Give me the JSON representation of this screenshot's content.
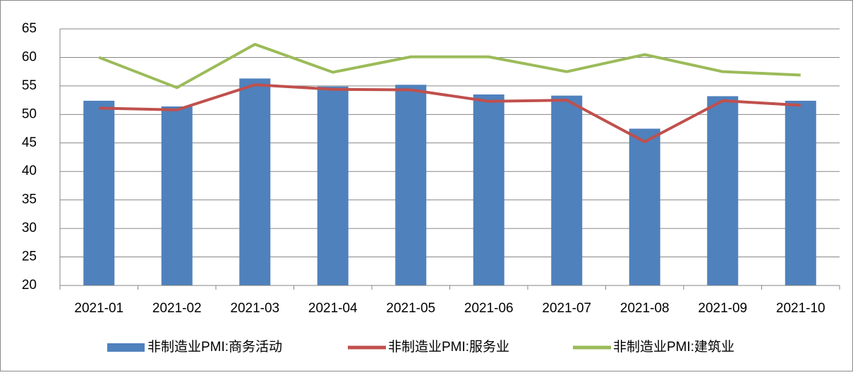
{
  "chart_data": {
    "type": "bar-line",
    "categories": [
      "2021-01",
      "2021-02",
      "2021-03",
      "2021-04",
      "2021-05",
      "2021-06",
      "2021-07",
      "2021-08",
      "2021-09",
      "2021-10"
    ],
    "series": [
      {
        "name": "非制造业PMI:商务活动",
        "type": "bar",
        "color": "#4f81bd",
        "values": [
          52.4,
          51.4,
          56.3,
          54.9,
          55.2,
          53.5,
          53.3,
          47.5,
          53.2,
          52.4
        ]
      },
      {
        "name": "非制造业PMI:服务业",
        "type": "line",
        "color": "#c0504d",
        "values": [
          51.1,
          50.8,
          55.2,
          54.4,
          54.3,
          52.3,
          52.5,
          45.2,
          52.4,
          51.6
        ]
      },
      {
        "name": "非制造业PMI:建筑业",
        "type": "line",
        "color": "#9bbb59",
        "values": [
          60.0,
          54.7,
          62.3,
          57.4,
          60.1,
          60.1,
          57.5,
          60.5,
          57.5,
          56.9
        ]
      }
    ],
    "ylim": [
      20,
      65
    ],
    "yticks": [
      20,
      25,
      30,
      35,
      40,
      45,
      50,
      55,
      60,
      65
    ],
    "grid": true,
    "legend": "bottom"
  }
}
